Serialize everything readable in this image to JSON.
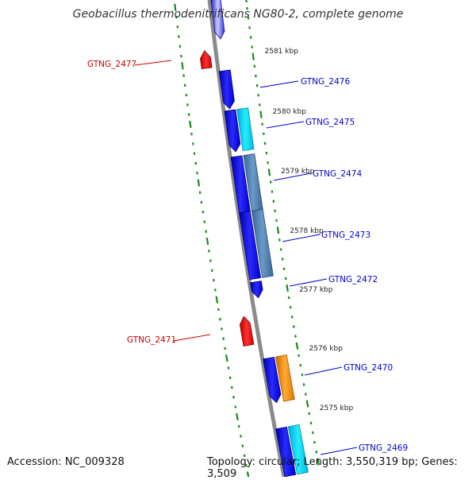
{
  "header": {
    "title": "Geobacillus thermodenitrificans NG80-2, complete genome"
  },
  "footer": {
    "accession": "Accession: NC_009328",
    "summary": "Topology: circular; Length: 3,550,319 bp; Genes: 3,509"
  },
  "colors": {
    "backbone": "#8a8a8a",
    "tick": "#1a8a1a",
    "forward_gene": "#e01010",
    "reverse_gene": "#1010e0",
    "blast_hit_a": "#00ccee",
    "blast_hit_b": "#4a78a8",
    "blast_hit_c": "#ee8800",
    "label_forward": "#cc0000",
    "label_reverse": "#0000cc"
  },
  "ruler": {
    "labels": [
      "2581 kbp",
      "2580 kbp",
      "2579 kbp",
      "2578 kbp",
      "2577 kbp",
      "2576 kbp",
      "2575 kbp"
    ]
  },
  "genes": [
    {
      "locus": "GTNG_2477",
      "strand": "forward"
    },
    {
      "locus": "GTNG_2476",
      "strand": "reverse"
    },
    {
      "locus": "GTNG_2475",
      "strand": "reverse"
    },
    {
      "locus": "GTNG_2474",
      "strand": "reverse"
    },
    {
      "locus": "GTNG_2473",
      "strand": "reverse"
    },
    {
      "locus": "GTNG_2472",
      "strand": "reverse"
    },
    {
      "locus": "GTNG_2471",
      "strand": "forward"
    },
    {
      "locus": "GTNG_2470",
      "strand": "reverse"
    },
    {
      "locus": "GTNG_2469",
      "strand": "reverse"
    }
  ]
}
